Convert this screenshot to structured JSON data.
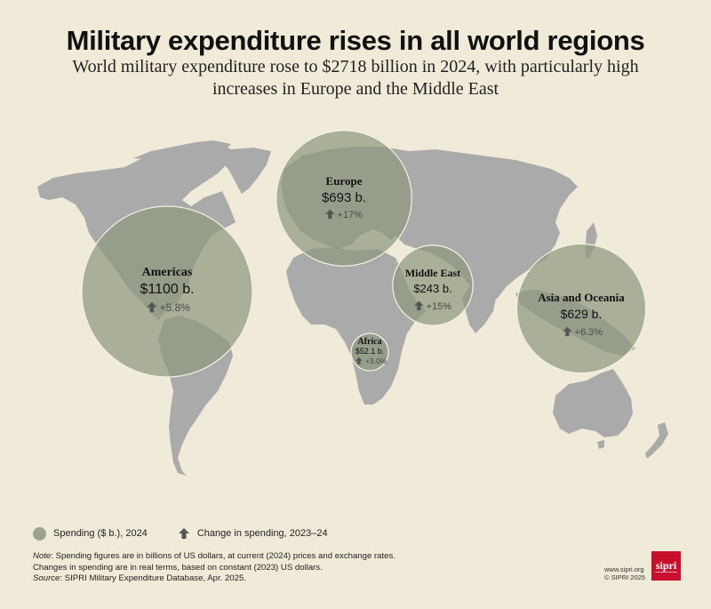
{
  "header": {
    "title": "Military expenditure rises in all world regions",
    "subtitle": "World military expenditure rose to $2718 billion in 2024, with particularly high increases in Europe and the Middle East"
  },
  "colors": {
    "background": "#F0EAD8",
    "land": "#ABAAAB",
    "bubble": "#8D9A7E",
    "logo": "#C8102E"
  },
  "regions": [
    {
      "name": "Americas",
      "value": "$1100 b.",
      "change": "+5.8%",
      "spending": 1100
    },
    {
      "name": "Europe",
      "value": "$693 b.",
      "change": "+17%",
      "spending": 693
    },
    {
      "name": "Middle East",
      "value": "$243 b.",
      "change": "+15%",
      "spending": 243
    },
    {
      "name": "Africa",
      "value": "$52.1 b.",
      "change": "+3.0%",
      "spending": 52.1
    },
    {
      "name": "Asia and Oceania",
      "value": "$629 b.",
      "change": "+6.3%",
      "spending": 629
    }
  ],
  "legend": {
    "spending_label": "Spending ($ b.), 2024",
    "change_label": "Change in spending, 2023–24",
    "spending_icon": "circle-icon",
    "change_icon": "arrow-up-icon"
  },
  "notes": {
    "note_prefix": "Note",
    "note_text": ": Spending figures are in billions of US dollars, at current (2024) prices and exchange rates.",
    "note_text2": "Changes in spending are in real terms, based on constant (2023) US dollars.",
    "source_prefix": "Source",
    "source_text": ": SIPRI Military Expenditure Database, Apr. 2025."
  },
  "credit": {
    "url": "www.sipri.org",
    "copyright": "© SIPRI 2025",
    "logo_text": "sipri"
  }
}
